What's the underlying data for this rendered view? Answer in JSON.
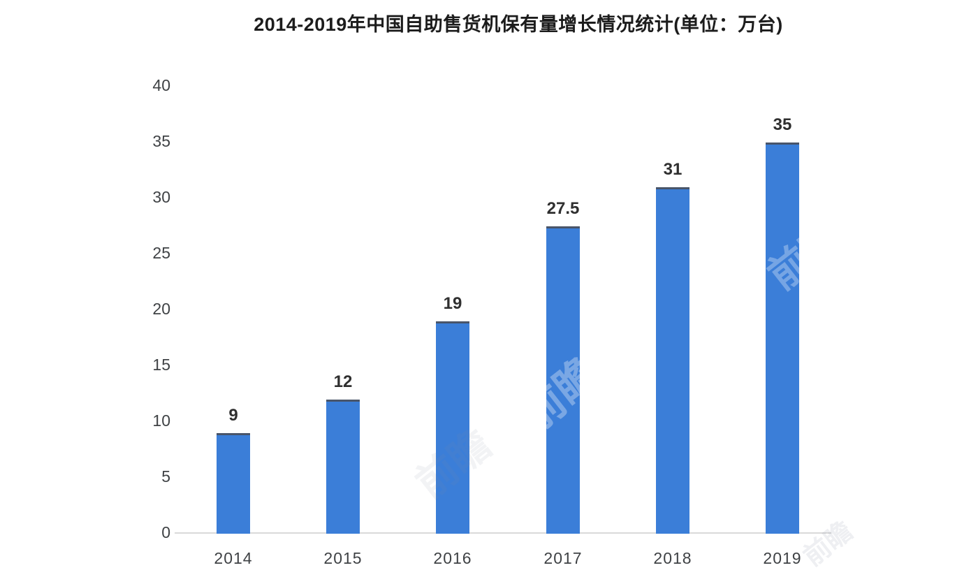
{
  "chart_data": {
    "type": "bar",
    "title": "2014-2019年中国自助售货机保有量增长情况统计(单位：万台)",
    "categories": [
      "2014",
      "2015",
      "2016",
      "2017",
      "2018",
      "2019"
    ],
    "values": [
      9,
      12,
      19,
      27.5,
      31,
      35
    ],
    "value_labels": [
      "9",
      "12",
      "19",
      "27.5",
      "31",
      "35"
    ],
    "xlabel": "",
    "ylabel": "",
    "ylim": [
      0,
      40
    ],
    "yticks": [
      0,
      5,
      10,
      15,
      20,
      25,
      30,
      35,
      40
    ],
    "grid": false,
    "legend": null,
    "bar_color": "#3b7ed8",
    "bar_top_edge_color": "#49556a",
    "baseline_color": "#d9d9d9",
    "title_color": "#1c1c1c",
    "tick_color": "#3f4245",
    "value_label_color": "#2f2f2f"
  },
  "watermarks": [
    "前瞻",
    "前瞻",
    "前瞻",
    "前瞻"
  ]
}
